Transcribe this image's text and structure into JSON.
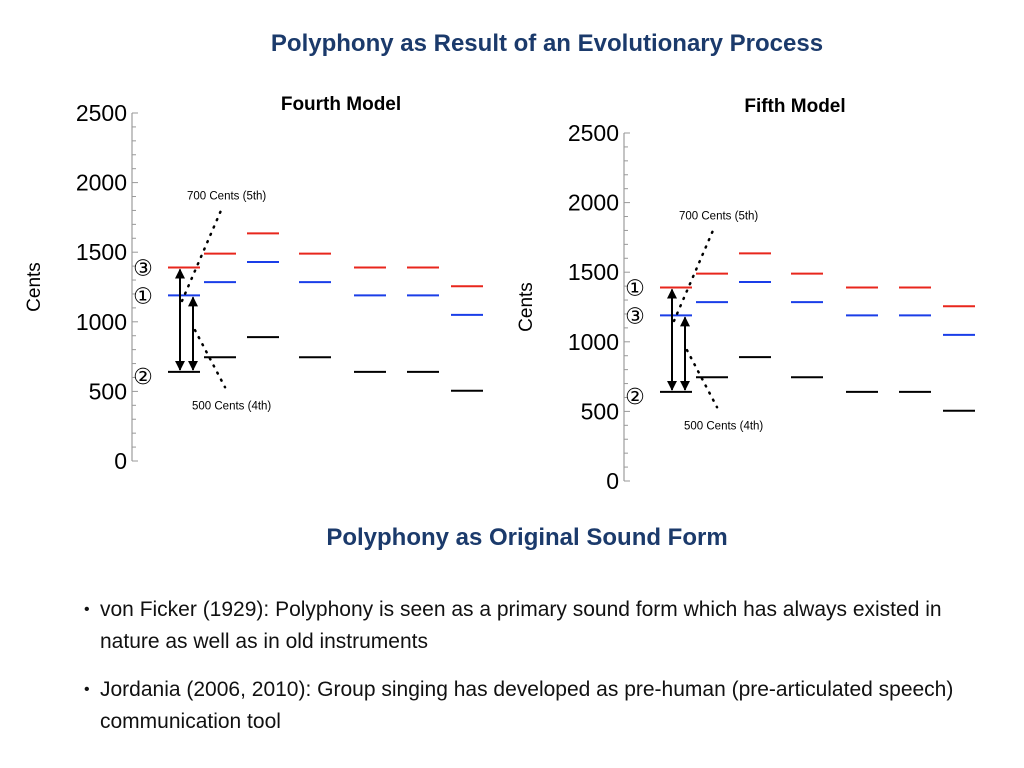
{
  "slide": {
    "title": "Polyphony as Result of an Evolutionary Process",
    "subtitle": "Polyphony as Original Sound Form",
    "bullets": [
      "von Ficker (1929): Polyphony is seen as a primary sound form which has always existed in nature as well as in old instruments",
      "Jordania (2006, 2010): Group singing has developed as pre-human (pre-articulated speech) communication tool"
    ]
  },
  "colors": {
    "title": "#1b3a6b",
    "red": "#e8261c",
    "blue": "#1a3ee8",
    "black": "#000000"
  },
  "chart_data": [
    {
      "type": "line-levels",
      "title": "Fourth Model",
      "ylabel": "Cents",
      "ylim": [
        0,
        2500
      ],
      "yticks": [
        "0",
        "500",
        "1000",
        "1500",
        "2000",
        "2500"
      ],
      "series": [
        {
          "name": "black",
          "values": [
            640,
            745,
            890,
            745,
            640,
            640,
            505
          ]
        },
        {
          "name": "blue",
          "values": [
            1190,
            1285,
            1430,
            1285,
            1190,
            1190,
            1050
          ]
        },
        {
          "name": "red",
          "values": [
            1390,
            1490,
            1635,
            1490,
            1390,
            1390,
            1255
          ]
        }
      ],
      "voice_markers": {
        "red": "③",
        "blue": "①",
        "black": "②"
      },
      "annotations": [
        "700 Cents (5th)",
        "500 Cents (4th)"
      ]
    },
    {
      "type": "line-levels",
      "title": "Fifth Model",
      "ylabel": "Cents",
      "ylim": [
        0,
        2500
      ],
      "yticks": [
        "0",
        "500",
        "1000",
        "1500",
        "2000",
        "2500"
      ],
      "series": [
        {
          "name": "black",
          "values": [
            640,
            745,
            890,
            745,
            640,
            640,
            505
          ]
        },
        {
          "name": "blue",
          "values": [
            1190,
            1285,
            1430,
            1285,
            1190,
            1190,
            1050
          ]
        },
        {
          "name": "red",
          "values": [
            1390,
            1490,
            1635,
            1490,
            1390,
            1390,
            1255
          ]
        }
      ],
      "voice_markers": {
        "red": "①",
        "blue": "③",
        "black": "②"
      },
      "annotations": [
        "700 Cents (5th)",
        "500 Cents (4th)"
      ]
    }
  ]
}
